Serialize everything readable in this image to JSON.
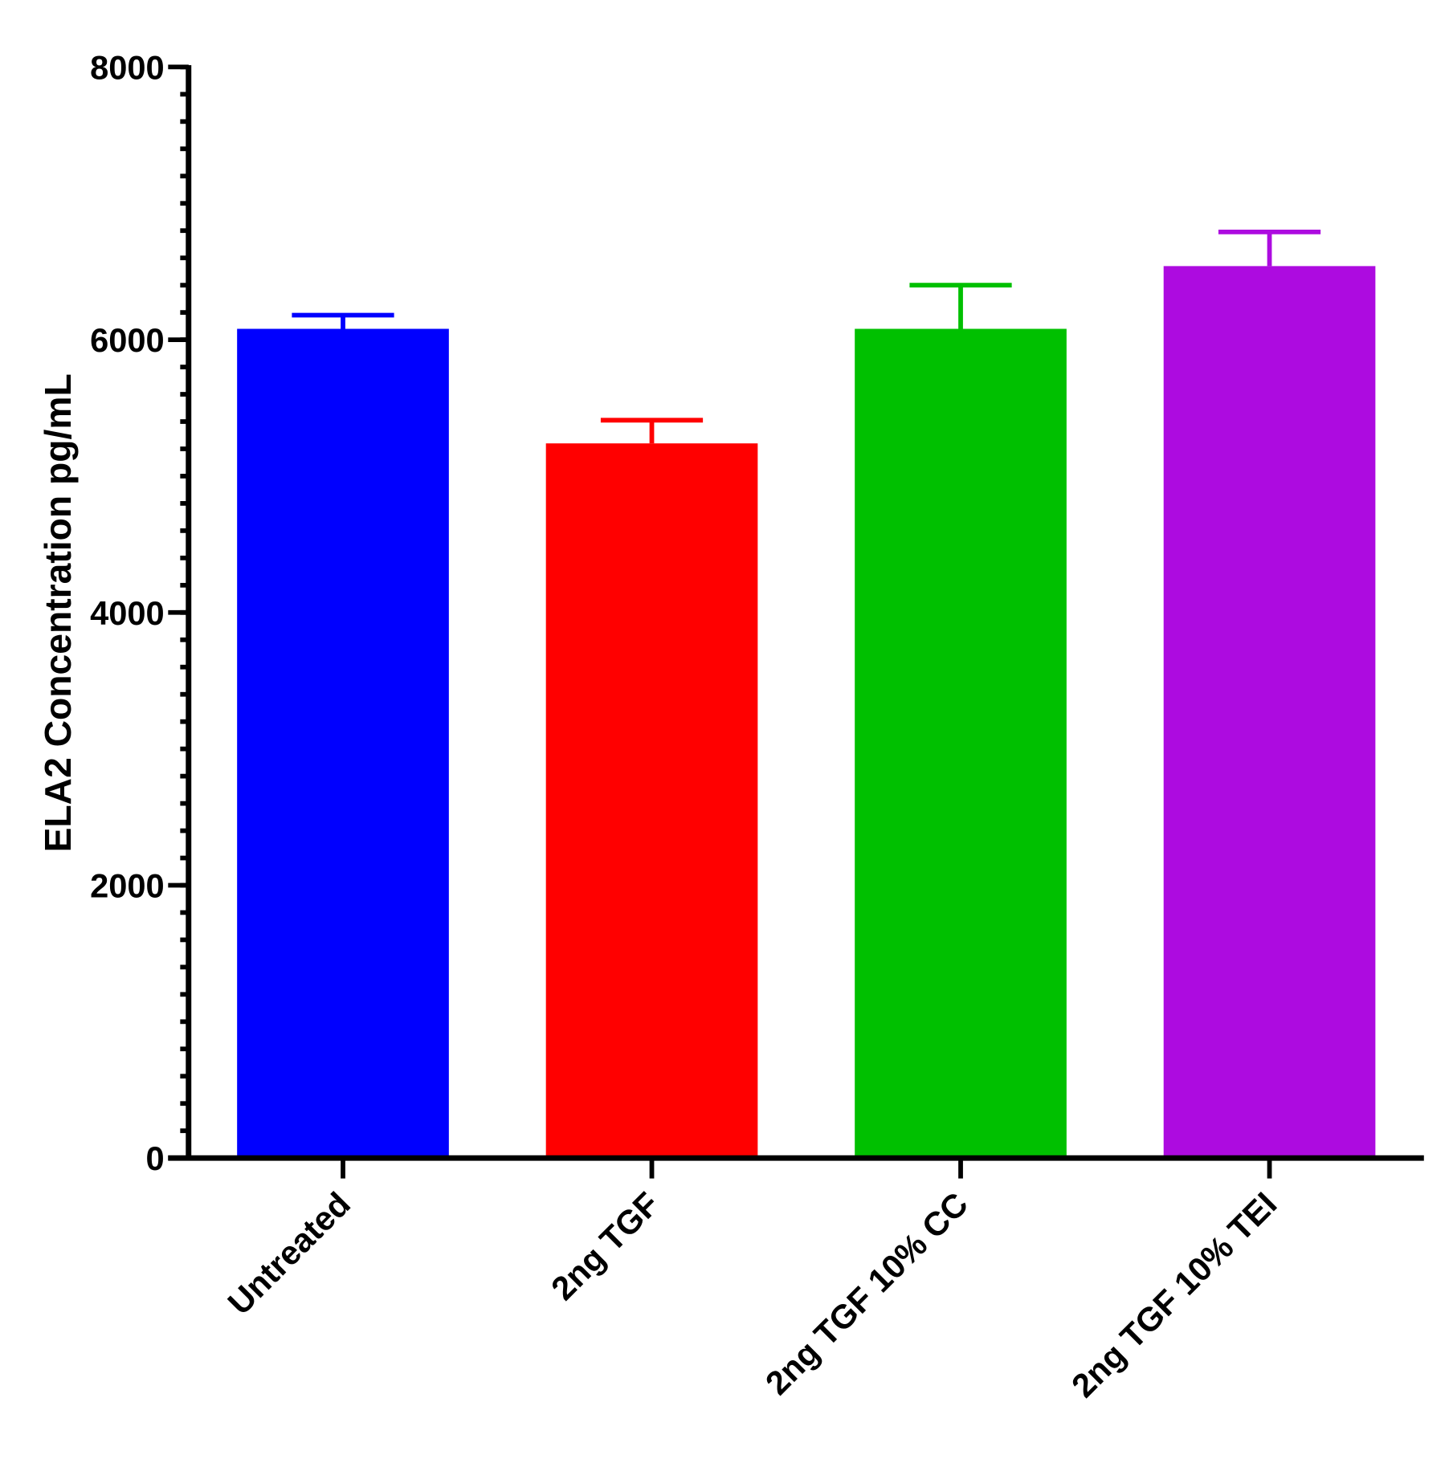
{
  "chart_data": {
    "type": "bar",
    "y_label": "ELA2 Concentration pg/mL",
    "categories": [
      "Untreated",
      "2ng TGF",
      "2ng TGF 10% CC",
      "2ng TGF 10% TEI"
    ],
    "values": [
      6080,
      5240,
      6080,
      6540
    ],
    "errors": [
      100,
      170,
      320,
      250
    ],
    "colors": [
      "#0000ff",
      "#ff0000",
      "#00c000",
      "#ad0be0"
    ],
    "ylim": [
      0,
      8000
    ],
    "yticks": [
      0,
      2000,
      4000,
      6000,
      8000
    ],
    "minor_tick_interval": 200
  }
}
